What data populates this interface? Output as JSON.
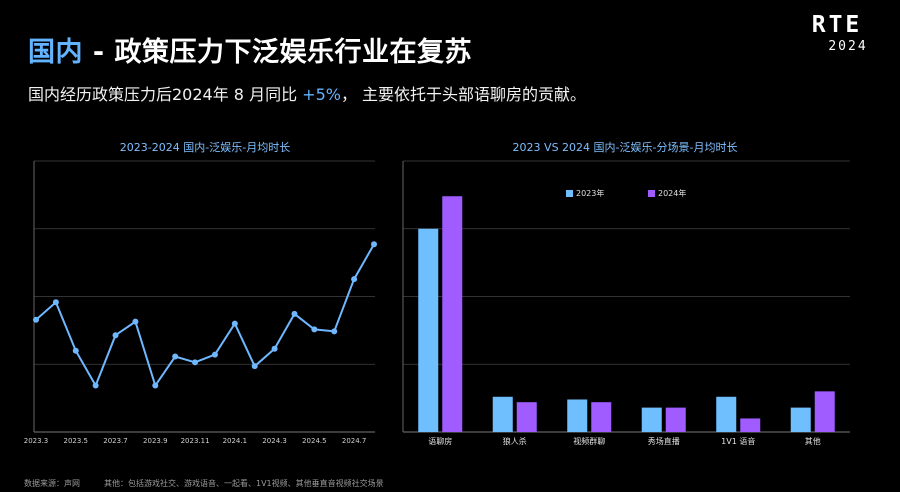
{
  "header": {
    "title_accent": "国内",
    "title_rest": "- 政策压力下泛娱乐行业在复苏",
    "subtitle_pre": "国内经历政策压力后2024年 8 月同比 ",
    "subtitle_pct": "+5%",
    "subtitle_post": "， 主要依托于头部语聊房的贡献。"
  },
  "logo": {
    "line1": "RTE",
    "line2": "2024"
  },
  "colors": {
    "line": "#6fb8ff",
    "bar_2023": "#6fbfff",
    "bar_2024": "#a05cff",
    "accent": "#63b3ff",
    "grid": "#444444"
  },
  "footer": {
    "source": "数据来源：声网",
    "note": "其他：包括游戏社交、游戏语音、一起看、1V1视频、其他垂直音视频社交场景"
  },
  "chart_data": [
    {
      "type": "line",
      "title": "2023-2024 国内-泛娱乐-月均时长",
      "x": [
        "2023.3",
        "2023.4",
        "2023.5",
        "2023.6",
        "2023.7",
        "2023.8",
        "2023.9",
        "2023.10",
        "2023.11",
        "2023.12",
        "2024.1",
        "2024.2",
        "2024.3",
        "2024.4",
        "2024.5",
        "2024.6",
        "2024.7",
        "2024.8"
      ],
      "x_tick_labels": [
        "2023.3",
        "2023.5",
        "2023.7",
        "2023.9",
        "2023.11",
        "2024.1",
        "2024.3",
        "2024.5",
        "2024.7"
      ],
      "values": [
        58,
        67,
        42,
        24,
        50,
        57,
        24,
        39,
        36,
        40,
        56,
        34,
        43,
        61,
        53,
        52,
        79,
        97
      ],
      "ylim": [
        0,
        140
      ],
      "grid": true,
      "y_tick_labels_shown": false
    },
    {
      "type": "bar",
      "title": "2023 VS 2024 国内-泛娱乐-分场景-月均时长",
      "categories": [
        "语聊房",
        "狼人杀",
        "视频群聊",
        "秀场直播",
        "1V1 语音",
        "其他"
      ],
      "series": [
        {
          "name": "2023年",
          "values": [
            75,
            13,
            12,
            9,
            13,
            9
          ]
        },
        {
          "name": "2024年",
          "values": [
            87,
            11,
            11,
            9,
            5,
            15
          ]
        }
      ],
      "ylim": [
        0,
        100
      ],
      "legend": "top-center",
      "grid": true,
      "y_tick_labels_shown": false
    }
  ]
}
